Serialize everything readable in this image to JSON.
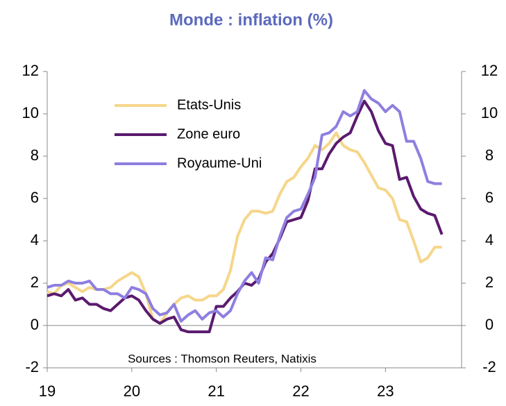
{
  "chart_data": {
    "type": "line",
    "title": "Monde : inflation (%)",
    "annotation": "Sources : Thomson Reuters, Natixis",
    "x": [
      19,
      19.083,
      19.167,
      19.25,
      19.333,
      19.417,
      19.5,
      19.583,
      19.667,
      19.75,
      19.833,
      19.917,
      20,
      20.083,
      20.167,
      20.25,
      20.333,
      20.417,
      20.5,
      20.583,
      20.667,
      20.75,
      20.833,
      20.917,
      21,
      21.083,
      21.167,
      21.25,
      21.333,
      21.417,
      21.5,
      21.583,
      21.667,
      21.75,
      21.833,
      21.917,
      22,
      22.083,
      22.167,
      22.25,
      22.333,
      22.417,
      22.5,
      22.583,
      22.667,
      22.75,
      22.833,
      22.917,
      23,
      23.083,
      23.167,
      23.25,
      23.333,
      23.417,
      23.5,
      23.583,
      23.667
    ],
    "xlim": [
      19,
      23.9
    ],
    "xticks": [
      19,
      20,
      21,
      22,
      23
    ],
    "ylim": [
      -2,
      12
    ],
    "yticks": [
      -2,
      0,
      2,
      4,
      6,
      8,
      10,
      12
    ],
    "y2lim": [
      -2,
      12
    ],
    "y2ticks": [
      -2,
      0,
      2,
      4,
      6,
      8,
      10,
      12
    ],
    "series": [
      {
        "name": "Etats-Unis",
        "color": "#f6d68a",
        "values": [
          1.6,
          1.5,
          1.9,
          2.0,
          1.8,
          1.6,
          1.8,
          1.7,
          1.7,
          1.8,
          2.1,
          2.3,
          2.5,
          2.3,
          1.5,
          0.3,
          0.1,
          0.6,
          1.0,
          1.3,
          1.4,
          1.2,
          1.2,
          1.4,
          1.4,
          1.7,
          2.6,
          4.2,
          5.0,
          5.4,
          5.4,
          5.3,
          5.4,
          6.2,
          6.8,
          7.0,
          7.5,
          7.9,
          8.5,
          8.3,
          8.6,
          9.1,
          8.5,
          8.3,
          8.2,
          7.7,
          7.1,
          6.5,
          6.4,
          6.0,
          5.0,
          4.9,
          4.0,
          3.0,
          3.2,
          3.7,
          3.7
        ]
      },
      {
        "name": "Zone euro",
        "color": "#5a1a6e",
        "values": [
          1.4,
          1.5,
          1.4,
          1.7,
          1.2,
          1.3,
          1.0,
          1.0,
          0.8,
          0.7,
          1.0,
          1.3,
          1.4,
          1.2,
          0.7,
          0.3,
          0.1,
          0.3,
          0.4,
          -0.2,
          -0.3,
          -0.3,
          -0.3,
          -0.3,
          0.9,
          0.9,
          1.3,
          1.6,
          2.0,
          1.9,
          2.2,
          3.0,
          3.4,
          4.1,
          4.9,
          5.0,
          5.1,
          5.9,
          7.4,
          7.4,
          8.1,
          8.6,
          8.9,
          9.1,
          9.9,
          10.6,
          10.1,
          9.2,
          8.6,
          8.5,
          6.9,
          7.0,
          6.1,
          5.5,
          5.3,
          5.2,
          4.3
        ]
      },
      {
        "name": "Royaume-Uni",
        "color": "#8e7fe0",
        "values": [
          1.8,
          1.9,
          1.9,
          2.1,
          2.0,
          2.0,
          2.1,
          1.7,
          1.7,
          1.5,
          1.5,
          1.3,
          1.8,
          1.7,
          1.5,
          0.8,
          0.5,
          0.6,
          1.0,
          0.2,
          0.5,
          0.7,
          0.3,
          0.6,
          0.7,
          0.4,
          0.7,
          1.5,
          2.1,
          2.5,
          2.0,
          3.2,
          3.1,
          4.2,
          5.1,
          5.4,
          5.5,
          6.2,
          7.0,
          9.0,
          9.1,
          9.4,
          10.1,
          9.9,
          10.1,
          11.1,
          10.7,
          10.5,
          10.1,
          10.4,
          10.1,
          8.7,
          8.7,
          7.9,
          6.8,
          6.7,
          6.7
        ]
      }
    ]
  }
}
